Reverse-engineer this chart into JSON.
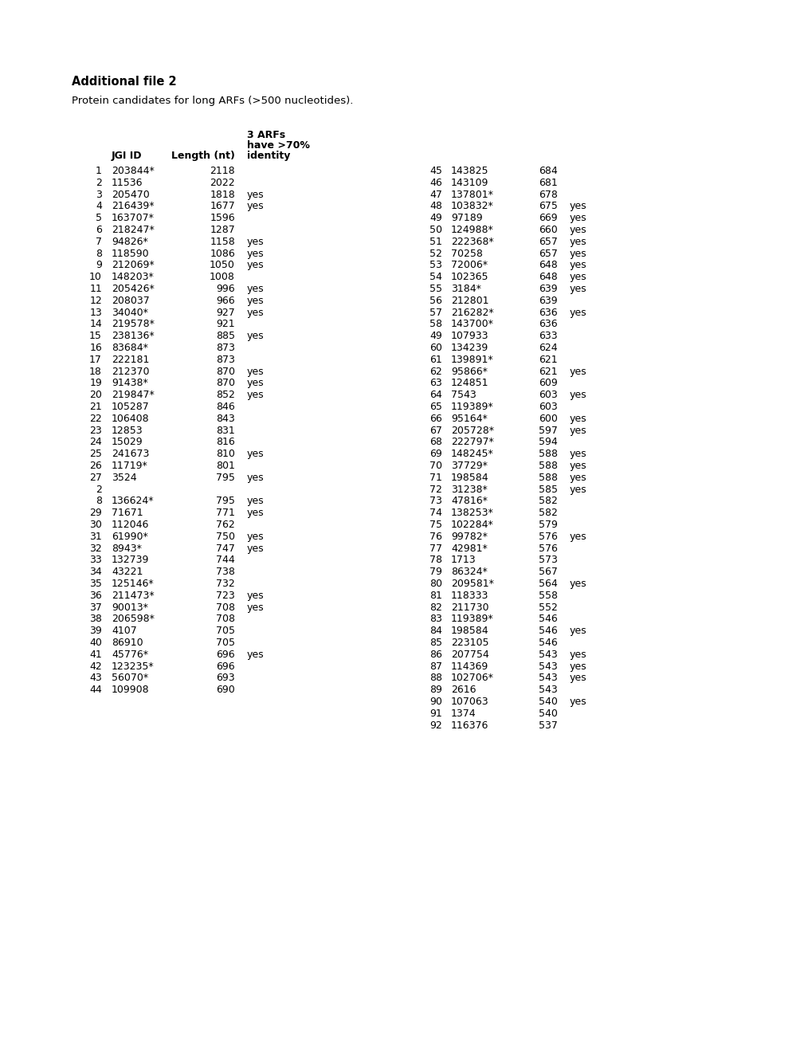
{
  "title_bold": "Additional file 2",
  "title_normal": "Protein candidates for long ARFs (>500 nucleotides).",
  "rows_left": [
    [
      "1",
      "203844*",
      "2118",
      ""
    ],
    [
      "2",
      "11536",
      "2022",
      ""
    ],
    [
      "3",
      "205470",
      "1818",
      "yes"
    ],
    [
      "4",
      "216439*",
      "1677",
      "yes"
    ],
    [
      "5",
      "163707*",
      "1596",
      ""
    ],
    [
      "6",
      "218247*",
      "1287",
      ""
    ],
    [
      "7",
      "94826*",
      "1158",
      "yes"
    ],
    [
      "8",
      "118590",
      "1086",
      "yes"
    ],
    [
      "9",
      "212069*",
      "1050",
      "yes"
    ],
    [
      "10",
      "148203*",
      "1008",
      ""
    ],
    [
      "11",
      "205426*",
      "996",
      "yes"
    ],
    [
      "12",
      "208037",
      "966",
      "yes"
    ],
    [
      "13",
      "34040*",
      "927",
      "yes"
    ],
    [
      "14",
      "219578*",
      "921",
      ""
    ],
    [
      "15",
      "238136*",
      "885",
      "yes"
    ],
    [
      "16",
      "83684*",
      "873",
      ""
    ],
    [
      "17",
      "222181",
      "873",
      ""
    ],
    [
      "18",
      "212370",
      "870",
      "yes"
    ],
    [
      "19",
      "91438*",
      "870",
      "yes"
    ],
    [
      "20",
      "219847*",
      "852",
      "yes"
    ],
    [
      "21",
      "105287",
      "846",
      ""
    ],
    [
      "22",
      "106408",
      "843",
      ""
    ],
    [
      "23",
      "12853",
      "831",
      ""
    ],
    [
      "24",
      "15029",
      "816",
      ""
    ],
    [
      "25",
      "241673",
      "810",
      "yes"
    ],
    [
      "26",
      "11719*",
      "801",
      ""
    ],
    [
      "27",
      "3524",
      "795",
      "yes"
    ],
    [
      "2",
      "",
      "",
      ""
    ],
    [
      "8",
      "136624*",
      "795",
      "yes"
    ],
    [
      "29",
      "71671",
      "771",
      "yes"
    ],
    [
      "30",
      "112046",
      "762",
      ""
    ],
    [
      "31",
      "61990*",
      "750",
      "yes"
    ],
    [
      "32",
      "8943*",
      "747",
      "yes"
    ],
    [
      "33",
      "132739",
      "744",
      ""
    ],
    [
      "34",
      "43221",
      "738",
      ""
    ],
    [
      "35",
      "125146*",
      "732",
      ""
    ],
    [
      "36",
      "211473*",
      "723",
      "yes"
    ],
    [
      "37",
      "90013*",
      "708",
      "yes"
    ],
    [
      "38",
      "206598*",
      "708",
      ""
    ],
    [
      "39",
      "4107",
      "705",
      ""
    ],
    [
      "40",
      "86910",
      "705",
      ""
    ],
    [
      "41",
      "45776*",
      "696",
      "yes"
    ],
    [
      "42",
      "123235*",
      "696",
      ""
    ],
    [
      "43",
      "56070*",
      "693",
      ""
    ],
    [
      "44",
      "109908",
      "690",
      ""
    ]
  ],
  "rows_right": [
    [
      "45",
      "143825",
      "684",
      ""
    ],
    [
      "46",
      "143109",
      "681",
      ""
    ],
    [
      "47",
      "137801*",
      "678",
      ""
    ],
    [
      "48",
      "103832*",
      "675",
      "yes"
    ],
    [
      "49",
      "97189",
      "669",
      "yes"
    ],
    [
      "50",
      "124988*",
      "660",
      "yes"
    ],
    [
      "51",
      "222368*",
      "657",
      "yes"
    ],
    [
      "52",
      "70258",
      "657",
      "yes"
    ],
    [
      "53",
      "72006*",
      "648",
      "yes"
    ],
    [
      "54",
      "102365",
      "648",
      "yes"
    ],
    [
      "55",
      "3184*",
      "639",
      "yes"
    ],
    [
      "56",
      "212801",
      "639",
      ""
    ],
    [
      "57",
      "216282*",
      "636",
      "yes"
    ],
    [
      "58",
      "143700*",
      "636",
      ""
    ],
    [
      "49",
      "107933",
      "633",
      ""
    ],
    [
      "60",
      "134239",
      "624",
      ""
    ],
    [
      "61",
      "139891*",
      "621",
      ""
    ],
    [
      "62",
      "95866*",
      "621",
      "yes"
    ],
    [
      "63",
      "124851",
      "609",
      ""
    ],
    [
      "64",
      "7543",
      "603",
      "yes"
    ],
    [
      "65",
      "119389*",
      "603",
      ""
    ],
    [
      "66",
      "95164*",
      "600",
      "yes"
    ],
    [
      "67",
      "205728*",
      "597",
      "yes"
    ],
    [
      "68",
      "222797*",
      "594",
      ""
    ],
    [
      "69",
      "148245*",
      "588",
      "yes"
    ],
    [
      "70",
      "37729*",
      "588",
      "yes"
    ],
    [
      "71",
      "198584",
      "588",
      "yes"
    ],
    [
      "72",
      "31238*",
      "585",
      "yes"
    ],
    [
      "73",
      "47816*",
      "582",
      ""
    ],
    [
      "74",
      "138253*",
      "582",
      ""
    ],
    [
      "75",
      "102284*",
      "579",
      ""
    ],
    [
      "76",
      "99782*",
      "576",
      "yes"
    ],
    [
      "77",
      "42981*",
      "576",
      ""
    ],
    [
      "78",
      "1713",
      "573",
      ""
    ],
    [
      "79",
      "86324*",
      "567",
      ""
    ],
    [
      "80",
      "209581*",
      "564",
      "yes"
    ],
    [
      "81",
      "118333",
      "558",
      ""
    ],
    [
      "82",
      "211730",
      "552",
      ""
    ],
    [
      "83",
      "119389*",
      "546",
      ""
    ],
    [
      "84",
      "198584",
      "546",
      "yes"
    ],
    [
      "85",
      "223105",
      "546",
      ""
    ],
    [
      "86",
      "207754",
      "543",
      "yes"
    ],
    [
      "87",
      "114369",
      "543",
      "yes"
    ],
    [
      "88",
      "102706*",
      "543",
      "yes"
    ],
    [
      "89",
      "2616",
      "543",
      ""
    ],
    [
      "90",
      "107063",
      "540",
      "yes"
    ],
    [
      "91",
      "1374",
      "540",
      ""
    ],
    [
      "92",
      "116376",
      "537",
      ""
    ]
  ],
  "bg_color": "#ffffff",
  "text_color": "#000000",
  "font_size": 9.0,
  "title_font_size": 10.5,
  "subtitle_font_size": 9.5
}
